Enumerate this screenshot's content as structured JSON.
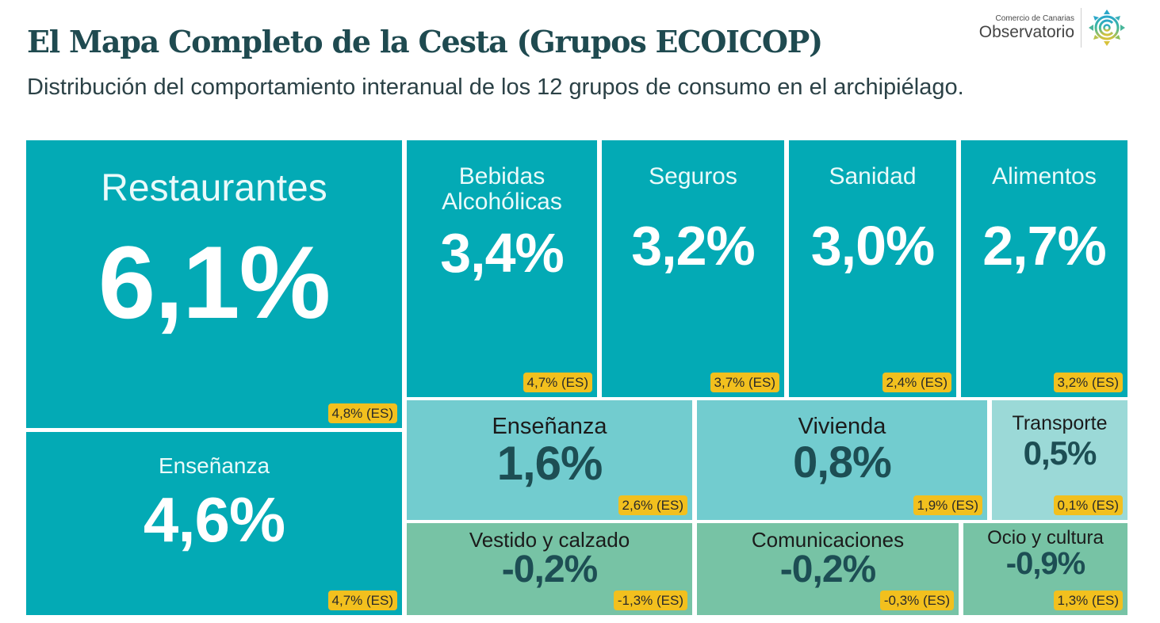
{
  "header": {
    "title": "El Mapa Completo de la Cesta (Grupos ECOICOP)",
    "subtitle": "Distribución del comportamiento interanual de los 12 grupos de consumo en el archipiélago."
  },
  "logo": {
    "org_small": "Comercio de Canarias",
    "org_big": "Observatorio",
    "icon": "observatorio-logo-icon"
  },
  "colors": {
    "high": "#03aab5",
    "mid": "#72cccf",
    "low": "#9bd9d7",
    "negative": "#77c3a5",
    "badge": "#f2c01e",
    "title": "#1f4a50"
  },
  "chart_data": {
    "type": "treemap",
    "title": "El Mapa Completo de la Cesta (Grupos ECOICOP)",
    "subtitle": "Distribución del comportamiento interanual de los 12 grupos de consumo en el archipiélago.",
    "unit": "%",
    "comparison_label": "(ES)",
    "items": [
      {
        "name": "Restaurantes",
        "value": 6.1,
        "label": "6,1%",
        "es_value": 4.8,
        "es_label": "4,8% (ES)"
      },
      {
        "name": "Enseñanza",
        "value": 4.6,
        "label": "4,6%",
        "es_value": 4.7,
        "es_label": "4,7% (ES)"
      },
      {
        "name": "Bebidas Alcohólicas",
        "value": 3.4,
        "label": "3,4%",
        "es_value": 4.7,
        "es_label": "4,7% (ES)"
      },
      {
        "name": "Seguros",
        "value": 3.2,
        "label": "3,2%",
        "es_value": 3.7,
        "es_label": "3,7% (ES)"
      },
      {
        "name": "Sanidad",
        "value": 3.0,
        "label": "3,0%",
        "es_value": 2.4,
        "es_label": "2,4% (ES)"
      },
      {
        "name": "Alimentos",
        "value": 2.7,
        "label": "2,7%",
        "es_value": 3.2,
        "es_label": "3,2% (ES)"
      },
      {
        "name": "Enseñanza",
        "value": 1.6,
        "label": "1,6%",
        "es_value": 2.6,
        "es_label": "2,6% (ES)"
      },
      {
        "name": "Vivienda",
        "value": 0.8,
        "label": "0,8%",
        "es_value": 1.9,
        "es_label": "1,9% (ES)"
      },
      {
        "name": "Transporte",
        "value": 0.5,
        "label": "0,5%",
        "es_value": 0.1,
        "es_label": "0,1% (ES)"
      },
      {
        "name": "Vestido y calzado",
        "value": -0.2,
        "label": "-0,2%",
        "es_value": -1.3,
        "es_label": "-1,3% (ES)"
      },
      {
        "name": "Comunicaciones",
        "value": -0.2,
        "label": "-0,2%",
        "es_value": -0.3,
        "es_label": "-0,3% (ES)"
      },
      {
        "name": "Ocio y cultura",
        "value": -0.9,
        "label": "-0,9%",
        "es_value": 1.3,
        "es_label": "1,3% (ES)"
      }
    ]
  }
}
